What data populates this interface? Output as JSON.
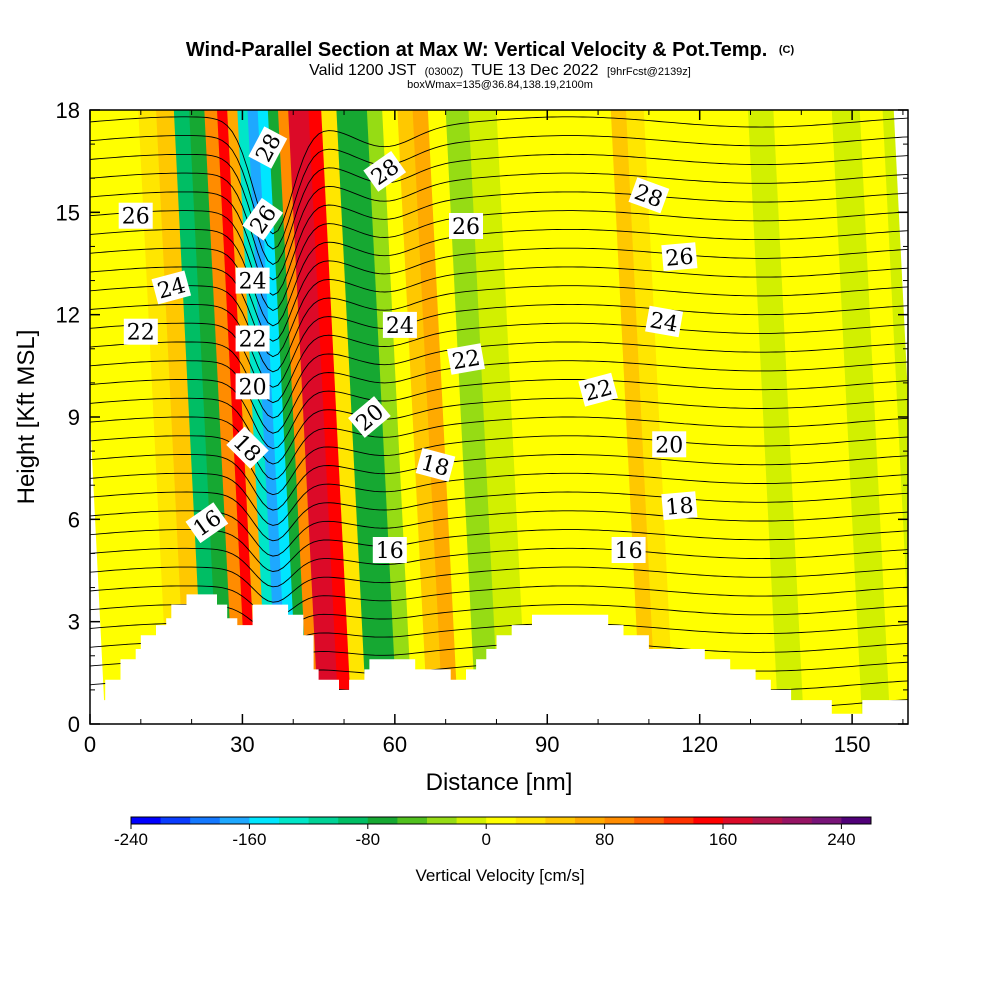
{
  "header": {
    "title": "Wind-Parallel Section at Max W: Vertical Velocity & Pot.Temp.",
    "title_mark": "(C)",
    "valid_prefix": "Valid 1200 JST",
    "valid_utc": "(0300Z)",
    "valid_date": "TUE 13 Dec 2022",
    "valid_fcst": "[9hrFcst@2139z]",
    "box_info": "boxWmax=135@36.84,138.19,2100m"
  },
  "chart_data": {
    "type": "heatmap",
    "xlabel": "Distance [nm]",
    "ylabel": "Height [Kft MSL]",
    "xlim": [
      0,
      161
    ],
    "ylim": [
      0,
      18
    ],
    "x_ticks": [
      "0",
      "30",
      "60",
      "90",
      "120",
      "150"
    ],
    "y_ticks": [
      "0",
      "3",
      "6",
      "9",
      "12",
      "15",
      "18"
    ],
    "colorbar": {
      "label": "Vertical Velocity [cm/s]",
      "range": [
        -240,
        260
      ],
      "tick_labels": [
        "-240",
        "-160",
        "-80",
        "0",
        "80",
        "160",
        "240"
      ],
      "colors": [
        "#0000ff",
        "#0a3cff",
        "#1478ff",
        "#1ea8ff",
        "#00e6ff",
        "#00e6c8",
        "#00d296",
        "#00be64",
        "#16a832",
        "#50c01e",
        "#96dc14",
        "#d2f000",
        "#ffff00",
        "#ffe600",
        "#ffc800",
        "#ffaa00",
        "#ff8c00",
        "#ff6400",
        "#ff3200",
        "#ff0000",
        "#dc0a28",
        "#b4144b",
        "#961464",
        "#781478",
        "#500078"
      ]
    },
    "velocity_columns": [
      {
        "x": 0,
        "w": 10
      },
      {
        "x": 5,
        "w": 10
      },
      {
        "x": 8,
        "w": 10
      },
      {
        "x": 11,
        "w": 10
      },
      {
        "x": 14,
        "w": 30
      },
      {
        "x": 18,
        "w": 40
      },
      {
        "x": 21,
        "w": -90
      },
      {
        "x": 24,
        "w": -70
      },
      {
        "x": 27,
        "w": 80
      },
      {
        "x": 29,
        "w": 140
      },
      {
        "x": 31,
        "w": 60
      },
      {
        "x": 33,
        "w": -130
      },
      {
        "x": 35,
        "w": -175
      },
      {
        "x": 37,
        "w": -150
      },
      {
        "x": 39,
        "w": -70
      },
      {
        "x": 41,
        "w": 90
      },
      {
        "x": 43,
        "w": 165
      },
      {
        "x": 45,
        "w": 175
      },
      {
        "x": 47,
        "w": 140
      },
      {
        "x": 50,
        "w": 20
      },
      {
        "x": 53,
        "w": -65
      },
      {
        "x": 56,
        "w": -80
      },
      {
        "x": 59,
        "w": -40
      },
      {
        "x": 62,
        "w": 10
      },
      {
        "x": 65,
        "w": 40
      },
      {
        "x": 68,
        "w": 60
      },
      {
        "x": 71,
        "w": 15
      },
      {
        "x": 75,
        "w": -25
      },
      {
        "x": 80,
        "w": -10
      },
      {
        "x": 86,
        "w": 5
      },
      {
        "x": 92,
        "w": 10
      },
      {
        "x": 98,
        "w": 5
      },
      {
        "x": 104,
        "w": 15
      },
      {
        "x": 107,
        "w": 40
      },
      {
        "x": 110,
        "w": 35
      },
      {
        "x": 114,
        "w": 5
      },
      {
        "x": 118,
        "w": 15
      },
      {
        "x": 124,
        "w": 10
      },
      {
        "x": 130,
        "w": 8
      },
      {
        "x": 135,
        "w": -15
      },
      {
        "x": 140,
        "w": 15
      },
      {
        "x": 146,
        "w": 8
      },
      {
        "x": 152,
        "w": -12
      },
      {
        "x": 157,
        "w": 8
      },
      {
        "x": 161,
        "w": -10
      }
    ],
    "terrain": [
      [
        0,
        0.7
      ],
      [
        3,
        0.7
      ],
      [
        3,
        1.3
      ],
      [
        6,
        1.3
      ],
      [
        6,
        1.9
      ],
      [
        9,
        1.9
      ],
      [
        9,
        2.2
      ],
      [
        10,
        2.2
      ],
      [
        10,
        2.6
      ],
      [
        13,
        2.6
      ],
      [
        13,
        2.9
      ],
      [
        15,
        2.9
      ],
      [
        15,
        3.1
      ],
      [
        16,
        3.1
      ],
      [
        16,
        3.5
      ],
      [
        19,
        3.5
      ],
      [
        19,
        3.8
      ],
      [
        25,
        3.8
      ],
      [
        25,
        3.5
      ],
      [
        27,
        3.5
      ],
      [
        27,
        3.1
      ],
      [
        29,
        3.1
      ],
      [
        29,
        2.9
      ],
      [
        32,
        2.9
      ],
      [
        32,
        3.5
      ],
      [
        35,
        3.5
      ],
      [
        35,
        3.5
      ],
      [
        39,
        3.5
      ],
      [
        39,
        3.2
      ],
      [
        42,
        3.2
      ],
      [
        42,
        2.6
      ],
      [
        44,
        2.6
      ],
      [
        44,
        1.6
      ],
      [
        45,
        1.6
      ],
      [
        45,
        1.3
      ],
      [
        49,
        1.3
      ],
      [
        49,
        1.0
      ],
      [
        51,
        1.0
      ],
      [
        51,
        1.3
      ],
      [
        54,
        1.3
      ],
      [
        54,
        1.6
      ],
      [
        55,
        1.6
      ],
      [
        55,
        1.9
      ],
      [
        59,
        1.9
      ],
      [
        59,
        1.9
      ],
      [
        64,
        1.9
      ],
      [
        64,
        1.6
      ],
      [
        71,
        1.6
      ],
      [
        71,
        1.3
      ],
      [
        74,
        1.3
      ],
      [
        74,
        1.6
      ],
      [
        76,
        1.6
      ],
      [
        76,
        1.9
      ],
      [
        78,
        1.9
      ],
      [
        78,
        2.2
      ],
      [
        80,
        2.2
      ],
      [
        80,
        2.6
      ],
      [
        83,
        2.6
      ],
      [
        83,
        2.9
      ],
      [
        87,
        2.9
      ],
      [
        87,
        3.2
      ],
      [
        102,
        3.2
      ],
      [
        102,
        2.9
      ],
      [
        105,
        2.9
      ],
      [
        105,
        2.6
      ],
      [
        110,
        2.6
      ],
      [
        110,
        2.2
      ],
      [
        121,
        2.2
      ],
      [
        121,
        1.9
      ],
      [
        126,
        1.9
      ],
      [
        126,
        1.6
      ],
      [
        131,
        1.6
      ],
      [
        131,
        1.3
      ],
      [
        134,
        1.3
      ],
      [
        134,
        1.0
      ],
      [
        138,
        1.0
      ],
      [
        138,
        0.7
      ],
      [
        146,
        0.7
      ],
      [
        146,
        0.3
      ],
      [
        152,
        0.3
      ],
      [
        152,
        0.7
      ],
      [
        161,
        0.7
      ]
    ],
    "theta_contours": [
      {
        "y": 0.6,
        "dip": 0.2,
        "w": 5.5
      },
      {
        "y": 1.15,
        "dip": 0.3,
        "w": 5.5
      },
      {
        "y": 1.7,
        "dip": 0.4,
        "w": 5.5
      },
      {
        "y": 2.25,
        "dip": 0.5,
        "w": 5.5
      },
      {
        "y": 2.8,
        "dip": 0.6,
        "w": 5.5
      },
      {
        "y": 3.35,
        "dip": 0.7,
        "w": 5.5
      },
      {
        "y": 3.9,
        "dip": 0.8,
        "w": 5.5
      },
      {
        "y": 4.45,
        "dip": 0.9,
        "w": 5.5
      },
      {
        "y": 5.0,
        "dip": 1.0,
        "w": 5.5
      },
      {
        "y": 5.55,
        "dip": 1.1,
        "w": 5.5
      },
      {
        "y": 6.1,
        "dip": 1.2,
        "w": 5.5
      },
      {
        "y": 6.65,
        "dip": 1.3,
        "w": 5.5
      },
      {
        "y": 7.2,
        "dip": 1.4,
        "w": 5.5
      },
      {
        "y": 7.75,
        "dip": 1.5,
        "w": 5.5
      },
      {
        "y": 8.3,
        "dip": 1.6,
        "w": 5.5
      },
      {
        "y": 8.85,
        "dip": 1.7,
        "w": 5.5
      },
      {
        "y": 9.4,
        "dip": 1.8,
        "w": 5.5
      },
      {
        "y": 9.95,
        "dip": 1.9,
        "w": 5.5
      },
      {
        "y": 10.5,
        "dip": 2.0,
        "w": 5.5
      },
      {
        "y": 11.05,
        "dip": 2.1,
        "w": 5.5
      },
      {
        "y": 11.6,
        "dip": 2.2,
        "w": 5.5
      },
      {
        "y": 12.15,
        "dip": 2.3,
        "w": 5.5
      },
      {
        "y": 12.7,
        "dip": 2.4,
        "w": 5.5
      },
      {
        "y": 13.25,
        "dip": 2.5,
        "w": 5.5
      },
      {
        "y": 13.8,
        "dip": 2.6,
        "w": 5.5
      },
      {
        "y": 14.35,
        "dip": 2.7,
        "w": 5.5
      },
      {
        "y": 14.9,
        "dip": 2.8,
        "w": 5.5
      },
      {
        "y": 15.45,
        "dip": 2.9,
        "w": 5.5
      },
      {
        "y": 16.0,
        "dip": 3.0,
        "w": 5.5
      },
      {
        "y": 16.55,
        "dip": 3.1,
        "w": 5.5
      },
      {
        "y": 17.1,
        "dip": 3.2,
        "w": 5.5
      },
      {
        "y": 17.65,
        "dip": 3.3,
        "w": 5.5
      }
    ],
    "contour_labels": [
      {
        "text": "28",
        "x": 35,
        "y": 16.9,
        "angle": 62
      },
      {
        "text": "28",
        "x": 58,
        "y": 16.2,
        "angle": 35
      },
      {
        "text": "28",
        "x": 110,
        "y": 15.5,
        "angle": -20
      },
      {
        "text": "26",
        "x": 9,
        "y": 14.9,
        "angle": 0
      },
      {
        "text": "26",
        "x": 34,
        "y": 14.8,
        "angle": 55
      },
      {
        "text": "26",
        "x": 74,
        "y": 14.6,
        "angle": 0
      },
      {
        "text": "26",
        "x": 116,
        "y": 13.7,
        "angle": 5
      },
      {
        "text": "24",
        "x": 16,
        "y": 12.8,
        "angle": 15
      },
      {
        "text": "24",
        "x": 32,
        "y": 13.0,
        "angle": 0
      },
      {
        "text": "24",
        "x": 61,
        "y": 11.7,
        "angle": 0
      },
      {
        "text": "24",
        "x": 113,
        "y": 11.8,
        "angle": -10
      },
      {
        "text": "22",
        "x": 10,
        "y": 11.5,
        "angle": 0
      },
      {
        "text": "22",
        "x": 32,
        "y": 11.3,
        "angle": 0
      },
      {
        "text": "22",
        "x": 74,
        "y": 10.7,
        "angle": 10
      },
      {
        "text": "22",
        "x": 100,
        "y": 9.8,
        "angle": 15
      },
      {
        "text": "20",
        "x": 32,
        "y": 9.9,
        "angle": 0
      },
      {
        "text": "20",
        "x": 55,
        "y": 9.0,
        "angle": 40
      },
      {
        "text": "20",
        "x": 114,
        "y": 8.2,
        "angle": 0
      },
      {
        "text": "18",
        "x": 31,
        "y": 8.1,
        "angle": -45
      },
      {
        "text": "18",
        "x": 68,
        "y": 7.6,
        "angle": -15
      },
      {
        "text": "18",
        "x": 116,
        "y": 6.4,
        "angle": 5
      },
      {
        "text": "16",
        "x": 23,
        "y": 5.9,
        "angle": 35
      },
      {
        "text": "16",
        "x": 59,
        "y": 5.1,
        "angle": 0
      },
      {
        "text": "16",
        "x": 106,
        "y": 5.1,
        "angle": 0
      }
    ]
  }
}
